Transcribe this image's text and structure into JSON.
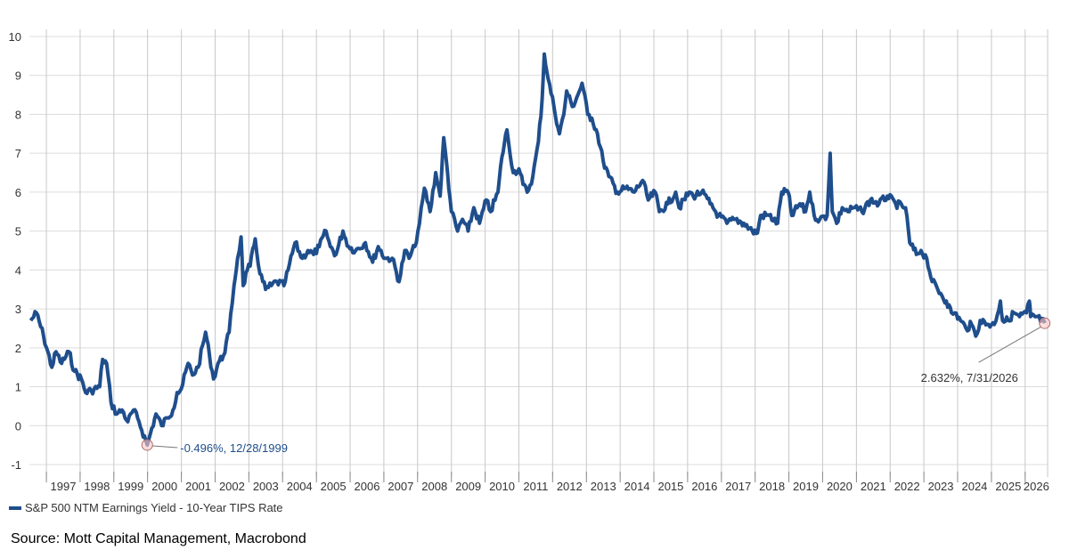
{
  "chart_data": {
    "type": "line",
    "title": "",
    "xlabel": "",
    "ylabel": "",
    "ylim": [
      -1,
      10
    ],
    "xlim": [
      "1996-07-01",
      "2026-09-01"
    ],
    "grid": true,
    "legend_position": "bottom-left",
    "y_ticks": [
      "-1",
      "0",
      "1",
      "2",
      "3",
      "4",
      "5",
      "6",
      "7",
      "8",
      "9",
      "10"
    ],
    "x_ticks": [
      "1997",
      "1998",
      "1999",
      "2000",
      "2001",
      "2002",
      "2003",
      "2004",
      "2005",
      "2006",
      "2007",
      "2008",
      "2009",
      "2010",
      "2011",
      "2012",
      "2013",
      "2014",
      "2015",
      "2016",
      "2017",
      "2018",
      "2019",
      "2020",
      "2021",
      "2022",
      "2023",
      "2024",
      "2025",
      "2026"
    ],
    "series": [
      {
        "name": "S&P 500 NTM Earnings Yield - 10-Year TIPS Rate",
        "color": "#1f4e8c",
        "points": [
          [
            "1996-07-15",
            2.7
          ],
          [
            "1996-09-15",
            2.9
          ],
          [
            "1996-12-01",
            2.3
          ],
          [
            "1997-03-01",
            1.5
          ],
          [
            "1997-04-15",
            1.9
          ],
          [
            "1997-06-15",
            1.6
          ],
          [
            "1997-09-01",
            1.9
          ],
          [
            "1997-11-01",
            1.4
          ],
          [
            "1998-01-15",
            1.2
          ],
          [
            "1998-03-01",
            0.85
          ],
          [
            "1998-05-01",
            0.9
          ],
          [
            "1998-08-01",
            1.0
          ],
          [
            "1998-09-01",
            1.7
          ],
          [
            "1998-10-15",
            1.6
          ],
          [
            "1998-12-01",
            0.6
          ],
          [
            "1999-02-01",
            0.3
          ],
          [
            "1999-04-01",
            0.4
          ],
          [
            "1999-06-01",
            0.1
          ],
          [
            "1999-08-01",
            0.4
          ],
          [
            "1999-10-01",
            0.1
          ],
          [
            "1999-12-28",
            -0.496
          ],
          [
            "2000-02-01",
            -0.2
          ],
          [
            "2000-04-01",
            0.3
          ],
          [
            "2000-06-01",
            0.0
          ],
          [
            "2000-08-01",
            0.2
          ],
          [
            "2000-10-01",
            0.4
          ],
          [
            "2000-11-15",
            0.85
          ],
          [
            "2001-01-01",
            0.95
          ],
          [
            "2001-03-15",
            1.6
          ],
          [
            "2001-05-01",
            1.3
          ],
          [
            "2001-07-01",
            1.5
          ],
          [
            "2001-09-20",
            2.4
          ],
          [
            "2001-11-01",
            1.8
          ],
          [
            "2001-12-15",
            1.2
          ],
          [
            "2002-02-01",
            1.6
          ],
          [
            "2002-04-01",
            1.8
          ],
          [
            "2002-06-01",
            2.4
          ],
          [
            "2002-07-24",
            3.6
          ],
          [
            "2002-09-01",
            4.3
          ],
          [
            "2002-10-09",
            4.85
          ],
          [
            "2002-11-01",
            3.6
          ],
          [
            "2002-12-15",
            4.0
          ],
          [
            "2003-01-15",
            4.1
          ],
          [
            "2003-03-11",
            4.8
          ],
          [
            "2003-05-01",
            3.9
          ],
          [
            "2003-07-01",
            3.5
          ],
          [
            "2003-09-01",
            3.6
          ],
          [
            "2003-11-01",
            3.7
          ],
          [
            "2004-01-15",
            3.6
          ],
          [
            "2004-03-01",
            4.0
          ],
          [
            "2004-05-15",
            4.7
          ],
          [
            "2004-08-01",
            4.3
          ],
          [
            "2004-10-01",
            4.5
          ],
          [
            "2004-12-01",
            4.4
          ],
          [
            "2005-02-01",
            4.6
          ],
          [
            "2005-04-15",
            5.0
          ],
          [
            "2005-06-01",
            4.6
          ],
          [
            "2005-08-01",
            4.4
          ],
          [
            "2005-10-15",
            5.0
          ],
          [
            "2005-12-15",
            4.6
          ],
          [
            "2006-03-01",
            4.5
          ],
          [
            "2006-06-15",
            4.7
          ],
          [
            "2006-09-01",
            4.2
          ],
          [
            "2006-11-01",
            4.6
          ],
          [
            "2007-01-15",
            4.3
          ],
          [
            "2007-04-01",
            4.3
          ],
          [
            "2007-06-15",
            3.7
          ],
          [
            "2007-08-15",
            4.5
          ],
          [
            "2007-10-01",
            4.3
          ],
          [
            "2007-12-01",
            4.6
          ],
          [
            "2008-01-22",
            5.2
          ],
          [
            "2008-03-15",
            6.1
          ],
          [
            "2008-05-15",
            5.5
          ],
          [
            "2008-07-15",
            6.5
          ],
          [
            "2008-09-01",
            5.9
          ],
          [
            "2008-10-10",
            7.4
          ],
          [
            "2008-11-20",
            6.5
          ],
          [
            "2009-01-01",
            5.5
          ],
          [
            "2009-03-09",
            5.0
          ],
          [
            "2009-05-01",
            5.3
          ],
          [
            "2009-07-01",
            5.0
          ],
          [
            "2009-09-01",
            5.6
          ],
          [
            "2009-11-01",
            5.2
          ],
          [
            "2010-01-15",
            5.8
          ],
          [
            "2010-03-01",
            5.5
          ],
          [
            "2010-05-20",
            6.0
          ],
          [
            "2010-07-01",
            6.9
          ],
          [
            "2010-08-25",
            7.6
          ],
          [
            "2010-11-01",
            6.5
          ],
          [
            "2011-01-01",
            6.6
          ],
          [
            "2011-02-15",
            6.2
          ],
          [
            "2011-04-01",
            6.0
          ],
          [
            "2011-06-01",
            6.4
          ],
          [
            "2011-08-01",
            7.3
          ],
          [
            "2011-09-10",
            8.4
          ],
          [
            "2011-10-03",
            9.55
          ],
          [
            "2011-11-15",
            8.9
          ],
          [
            "2012-01-15",
            8.2
          ],
          [
            "2012-03-15",
            7.5
          ],
          [
            "2012-05-01",
            8.0
          ],
          [
            "2012-06-01",
            8.6
          ],
          [
            "2012-08-01",
            8.2
          ],
          [
            "2012-10-01",
            8.5
          ],
          [
            "2012-11-15",
            8.8
          ],
          [
            "2013-01-15",
            8.0
          ],
          [
            "2013-03-01",
            7.9
          ],
          [
            "2013-05-01",
            7.5
          ],
          [
            "2013-07-01",
            6.8
          ],
          [
            "2013-09-01",
            6.4
          ],
          [
            "2013-12-01",
            6.0
          ],
          [
            "2014-03-01",
            6.1
          ],
          [
            "2014-06-01",
            6.0
          ],
          [
            "2014-09-01",
            6.3
          ],
          [
            "2014-11-01",
            5.8
          ],
          [
            "2015-01-15",
            6.0
          ],
          [
            "2015-03-01",
            5.5
          ],
          [
            "2015-06-01",
            5.7
          ],
          [
            "2015-08-25",
            6.0
          ],
          [
            "2015-10-01",
            5.6
          ],
          [
            "2016-01-20",
            6.0
          ],
          [
            "2016-03-01",
            5.9
          ],
          [
            "2016-06-01",
            6.0
          ],
          [
            "2016-09-01",
            5.7
          ],
          [
            "2016-12-01",
            5.4
          ],
          [
            "2017-03-01",
            5.2
          ],
          [
            "2017-06-01",
            5.3
          ],
          [
            "2017-09-01",
            5.2
          ],
          [
            "2017-12-01",
            5.0
          ],
          [
            "2018-01-26",
            4.95
          ],
          [
            "2018-03-01",
            5.4
          ],
          [
            "2018-06-01",
            5.4
          ],
          [
            "2018-09-01",
            5.2
          ],
          [
            "2018-10-15",
            6.0
          ],
          [
            "2018-12-24",
            6.0
          ],
          [
            "2019-02-01",
            5.4
          ],
          [
            "2019-05-01",
            5.7
          ],
          [
            "2019-07-01",
            5.5
          ],
          [
            "2019-08-15",
            6.0
          ],
          [
            "2019-10-01",
            5.4
          ],
          [
            "2019-12-01",
            5.3
          ],
          [
            "2020-02-19",
            5.4
          ],
          [
            "2020-03-23",
            7.0
          ],
          [
            "2020-04-15",
            5.5
          ],
          [
            "2020-06-01",
            5.2
          ],
          [
            "2020-08-01",
            5.6
          ],
          [
            "2020-10-01",
            5.5
          ],
          [
            "2020-12-01",
            5.6
          ],
          [
            "2021-03-01",
            5.5
          ],
          [
            "2021-06-01",
            5.8
          ],
          [
            "2021-09-01",
            5.7
          ],
          [
            "2021-12-01",
            5.9
          ],
          [
            "2022-03-01",
            5.7
          ],
          [
            "2022-06-16",
            5.6
          ],
          [
            "2022-08-01",
            4.7
          ],
          [
            "2022-10-12",
            4.4
          ],
          [
            "2022-12-01",
            4.5
          ],
          [
            "2023-02-01",
            4.3
          ],
          [
            "2023-04-01",
            3.7
          ],
          [
            "2023-07-01",
            3.4
          ],
          [
            "2023-09-01",
            3.2
          ],
          [
            "2023-10-27",
            2.9
          ],
          [
            "2023-12-01",
            2.9
          ],
          [
            "2024-02-01",
            2.7
          ],
          [
            "2024-04-01",
            2.5
          ],
          [
            "2024-06-01",
            2.6
          ],
          [
            "2024-07-15",
            2.3
          ],
          [
            "2024-09-01",
            2.7
          ],
          [
            "2024-12-01",
            2.6
          ],
          [
            "2025-02-01",
            2.6
          ],
          [
            "2025-04-08",
            3.2
          ],
          [
            "2025-05-01",
            2.7
          ],
          [
            "2025-07-01",
            2.7
          ],
          [
            "2025-09-01",
            2.9
          ],
          [
            "2025-11-01",
            2.8
          ],
          [
            "2026-01-15",
            2.9
          ],
          [
            "2026-02-15",
            3.2
          ],
          [
            "2026-03-01",
            2.8
          ],
          [
            "2026-05-01",
            2.8
          ],
          [
            "2026-07-31",
            2.632
          ]
        ]
      }
    ],
    "annotations": [
      {
        "label": "-0.496%, 12/28/1999",
        "x": "1999-12-28",
        "y": -0.496,
        "color": "#1f4e8c"
      },
      {
        "label": "2.632%, 7/31/2026",
        "x": "2026-07-31",
        "y": 2.632,
        "color": "#333333"
      }
    ]
  },
  "legend": {
    "label": "S&P 500 NTM Earnings Yield - 10-Year TIPS Rate",
    "color": "#1f4e8c"
  },
  "source": "Source: Mott Capital Management, Macrobond"
}
